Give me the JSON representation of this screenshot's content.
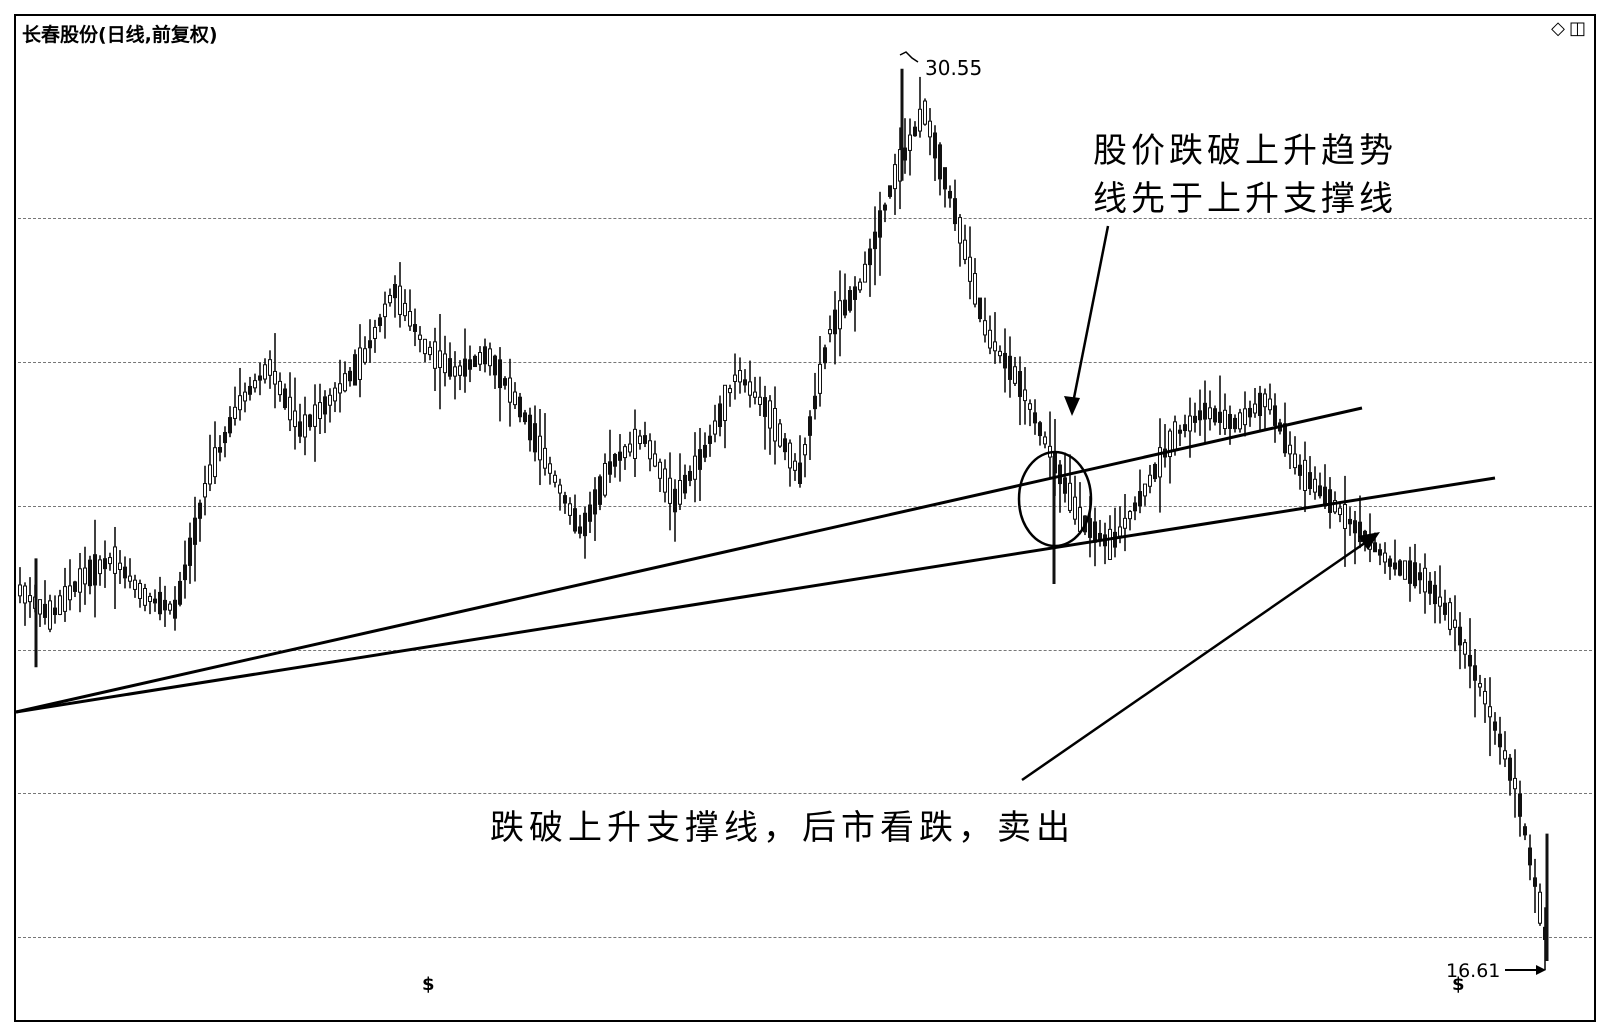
{
  "window": {
    "title": "长春股份(日线,前复权)",
    "icons": [
      "diamond-icon",
      "window-toggle-icon"
    ]
  },
  "labels": {
    "high": "30.55",
    "low": "16.61",
    "marker_left": "$",
    "marker_right": "$"
  },
  "annotations": {
    "upper_line1": "股价跌破上升趋势",
    "upper_line2": "线先于上升支撑线",
    "lower": "跌破上升支撑线，后市看跌，卖出"
  },
  "colors": {
    "candles": "#111111",
    "lines": "#000000",
    "background": "#ffffff"
  },
  "chart_data": {
    "type": "candlestick",
    "title": "长春股份(日线,前复权)",
    "ylim": [
      16,
      31
    ],
    "y_high": 30.55,
    "y_low": 16.61,
    "grid": "horizontal dashed",
    "grid_values": [
      28.4,
      25.4,
      22.4,
      19.5
    ],
    "series": [
      {
        "name": "",
        "x": [
          0,
          6,
          12,
          18,
          24,
          30,
          36,
          42,
          48,
          54,
          60,
          66,
          72,
          78,
          84,
          90,
          96,
          102,
          108,
          114,
          120,
          126,
          132,
          138,
          144,
          150,
          156,
          162,
          168,
          174,
          180,
          186,
          192,
          198,
          204,
          210,
          216,
          222,
          228,
          234,
          240,
          246,
          252,
          258,
          264,
          270,
          276,
          282,
          288,
          294
        ],
        "y": [
          22.4,
          22.0,
          22.6,
          22.9,
          22.3,
          22.1,
          24.1,
          25.3,
          25.9,
          24.9,
          25.4,
          26.0,
          27.1,
          26.2,
          25.8,
          26.1,
          25.3,
          24.3,
          23.3,
          24.4,
          24.8,
          23.8,
          24.6,
          25.8,
          25.2,
          24.2,
          26.5,
          27.2,
          28.8,
          29.9,
          28.3,
          26.4,
          25.7,
          24.6,
          23.5,
          23.1,
          23.9,
          24.8,
          25.2,
          25.0,
          25.4,
          24.3,
          23.8,
          23.3,
          22.8,
          22.6,
          21.9,
          20.7,
          19.3,
          16.8
        ]
      }
    ],
    "trendlines": [
      {
        "label": "上升趋势线",
        "from": [
          0,
          21.2
        ],
        "to": [
          260,
          25.1
        ]
      },
      {
        "label": "上升支撑线",
        "from": [
          0,
          21.2
        ],
        "to": [
          284,
          24.1
        ]
      }
    ]
  }
}
